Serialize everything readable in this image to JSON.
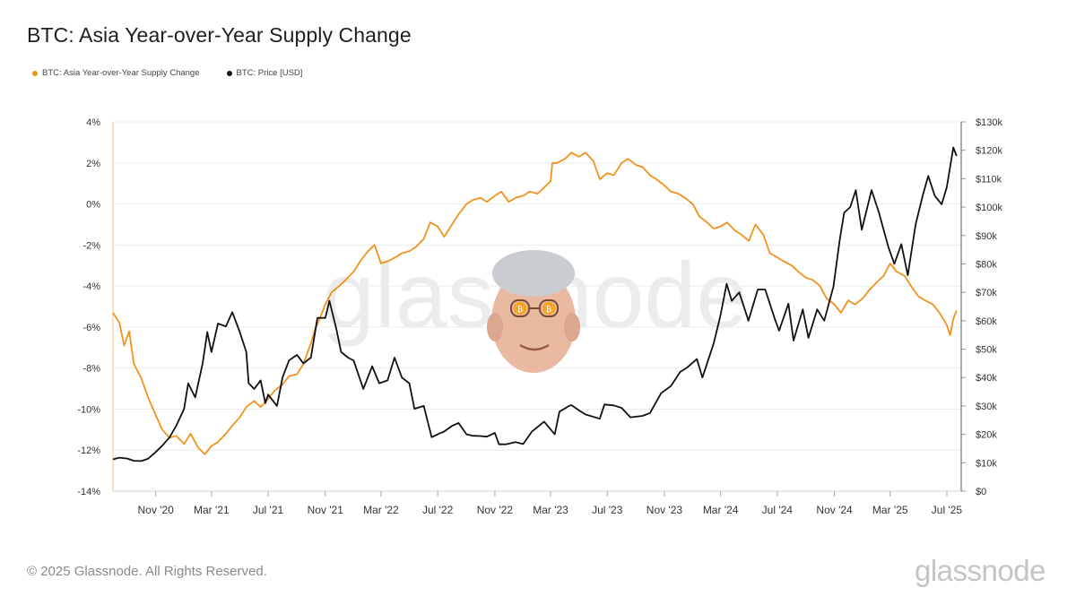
{
  "page": {
    "title": "BTC: Asia Year-over-Year Supply Change",
    "footer": "© 2025 Glassnode. All Rights Reserved.",
    "watermark": "glassnode"
  },
  "chart_data": {
    "type": "line",
    "title": "BTC: Asia Year-over-Year Supply Change",
    "legend_position": "top-left",
    "grid": true,
    "x_range": [
      "2020-08-01",
      "2025-08-01"
    ],
    "x_ticks": [
      {
        "date": "2020-11-01",
        "label": "Nov '20"
      },
      {
        "date": "2021-03-01",
        "label": "Mar '21"
      },
      {
        "date": "2021-07-01",
        "label": "Jul '21"
      },
      {
        "date": "2021-11-01",
        "label": "Nov '21"
      },
      {
        "date": "2022-03-01",
        "label": "Mar '22"
      },
      {
        "date": "2022-07-01",
        "label": "Jul '22"
      },
      {
        "date": "2022-11-01",
        "label": "Nov '22"
      },
      {
        "date": "2023-03-01",
        "label": "Mar '23"
      },
      {
        "date": "2023-07-01",
        "label": "Jul '23"
      },
      {
        "date": "2023-11-01",
        "label": "Nov '23"
      },
      {
        "date": "2024-03-01",
        "label": "Mar '24"
      },
      {
        "date": "2024-07-01",
        "label": "Jul '24"
      },
      {
        "date": "2024-11-01",
        "label": "Nov '24"
      },
      {
        "date": "2025-03-01",
        "label": "Mar '25"
      },
      {
        "date": "2025-07-01",
        "label": "Jul '25"
      }
    ],
    "y_left": {
      "ylim": [
        -14,
        4
      ],
      "ticks": [
        4,
        2,
        0,
        -2,
        -4,
        -6,
        -8,
        -10,
        -12,
        -14
      ],
      "tick_labels": [
        "4%",
        "2%",
        "0%",
        "-2%",
        "-4%",
        "-6%",
        "-8%",
        "-10%",
        "-12%",
        "-14%"
      ]
    },
    "y_right": {
      "ylim": [
        0,
        130000
      ],
      "ticks": [
        130000,
        120000,
        110000,
        100000,
        90000,
        80000,
        70000,
        60000,
        50000,
        40000,
        30000,
        20000,
        10000,
        0
      ],
      "tick_labels": [
        "$130k",
        "$120k",
        "$110k",
        "$100k",
        "$90k",
        "$80k",
        "$70k",
        "$60k",
        "$50k",
        "$40k",
        "$30k",
        "$20k",
        "$10k",
        "$0"
      ]
    },
    "series": [
      {
        "name": "BTC: Asia Year-over-Year Supply Change",
        "axis": "left",
        "color": "#f2921d",
        "points": [
          [
            "2020-08-01",
            -5.3
          ],
          [
            "2020-08-15",
            -5.8
          ],
          [
            "2020-08-25",
            -6.9
          ],
          [
            "2020-09-05",
            -6.2
          ],
          [
            "2020-09-15",
            -7.8
          ],
          [
            "2020-10-01",
            -8.5
          ],
          [
            "2020-10-15",
            -9.4
          ],
          [
            "2020-11-01",
            -10.3
          ],
          [
            "2020-11-15",
            -11.0
          ],
          [
            "2020-12-01",
            -11.4
          ],
          [
            "2020-12-15",
            -11.3
          ],
          [
            "2021-01-01",
            -11.7
          ],
          [
            "2021-01-15",
            -11.2
          ],
          [
            "2021-02-01",
            -11.9
          ],
          [
            "2021-02-15",
            -12.2
          ],
          [
            "2021-03-01",
            -11.8
          ],
          [
            "2021-03-15",
            -11.6
          ],
          [
            "2021-04-01",
            -11.2
          ],
          [
            "2021-04-15",
            -10.8
          ],
          [
            "2021-05-01",
            -10.4
          ],
          [
            "2021-05-15",
            -9.9
          ],
          [
            "2021-06-01",
            -9.6
          ],
          [
            "2021-06-15",
            -9.9
          ],
          [
            "2021-07-01",
            -9.5
          ],
          [
            "2021-07-15",
            -9.1
          ],
          [
            "2021-08-01",
            -8.8
          ],
          [
            "2021-08-15",
            -8.4
          ],
          [
            "2021-09-01",
            -8.3
          ],
          [
            "2021-09-15",
            -7.8
          ],
          [
            "2021-10-01",
            -6.8
          ],
          [
            "2021-10-10",
            -6.1
          ],
          [
            "2021-10-20",
            -5.6
          ],
          [
            "2021-11-01",
            -4.9
          ],
          [
            "2021-11-15",
            -4.3
          ],
          [
            "2021-12-01",
            -4.0
          ],
          [
            "2021-12-15",
            -3.7
          ],
          [
            "2022-01-01",
            -3.3
          ],
          [
            "2022-01-15",
            -2.8
          ],
          [
            "2022-02-01",
            -2.3
          ],
          [
            "2022-02-15",
            -2.0
          ],
          [
            "2022-03-01",
            -2.9
          ],
          [
            "2022-03-15",
            -2.8
          ],
          [
            "2022-04-01",
            -2.6
          ],
          [
            "2022-04-15",
            -2.4
          ],
          [
            "2022-05-01",
            -2.3
          ],
          [
            "2022-05-15",
            -2.1
          ],
          [
            "2022-06-01",
            -1.7
          ],
          [
            "2022-06-15",
            -0.9
          ],
          [
            "2022-07-01",
            -1.1
          ],
          [
            "2022-07-15",
            -1.6
          ],
          [
            "2022-08-01",
            -1.0
          ],
          [
            "2022-08-15",
            -0.5
          ],
          [
            "2022-09-01",
            0.0
          ],
          [
            "2022-09-15",
            0.2
          ],
          [
            "2022-10-01",
            0.3
          ],
          [
            "2022-10-15",
            0.1
          ],
          [
            "2022-11-01",
            0.4
          ],
          [
            "2022-11-15",
            0.6
          ],
          [
            "2022-12-01",
            0.1
          ],
          [
            "2022-12-15",
            0.3
          ],
          [
            "2023-01-01",
            0.4
          ],
          [
            "2023-01-15",
            0.6
          ],
          [
            "2023-02-01",
            0.5
          ],
          [
            "2023-02-15",
            0.8
          ],
          [
            "2023-03-01",
            1.1
          ],
          [
            "2023-03-05",
            2.0
          ],
          [
            "2023-03-15",
            2.0
          ],
          [
            "2023-04-01",
            2.2
          ],
          [
            "2023-04-15",
            2.5
          ],
          [
            "2023-05-01",
            2.3
          ],
          [
            "2023-05-15",
            2.5
          ],
          [
            "2023-06-01",
            2.1
          ],
          [
            "2023-06-15",
            1.2
          ],
          [
            "2023-07-01",
            1.5
          ],
          [
            "2023-07-15",
            1.4
          ],
          [
            "2023-08-01",
            2.0
          ],
          [
            "2023-08-15",
            2.2
          ],
          [
            "2023-09-01",
            1.9
          ],
          [
            "2023-09-15",
            1.8
          ],
          [
            "2023-10-01",
            1.4
          ],
          [
            "2023-10-15",
            1.2
          ],
          [
            "2023-11-01",
            0.9
          ],
          [
            "2023-11-15",
            0.6
          ],
          [
            "2023-12-01",
            0.5
          ],
          [
            "2023-12-15",
            0.3
          ],
          [
            "2024-01-01",
            0.0
          ],
          [
            "2024-01-15",
            -0.6
          ],
          [
            "2024-02-01",
            -0.9
          ],
          [
            "2024-02-15",
            -1.2
          ],
          [
            "2024-03-01",
            -1.1
          ],
          [
            "2024-03-15",
            -0.9
          ],
          [
            "2024-04-01",
            -1.3
          ],
          [
            "2024-04-15",
            -1.5
          ],
          [
            "2024-05-01",
            -1.8
          ],
          [
            "2024-05-15",
            -1.0
          ],
          [
            "2024-06-01",
            -1.5
          ],
          [
            "2024-06-15",
            -2.4
          ],
          [
            "2024-07-01",
            -2.6
          ],
          [
            "2024-07-15",
            -2.8
          ],
          [
            "2024-08-01",
            -3.0
          ],
          [
            "2024-08-15",
            -3.3
          ],
          [
            "2024-09-01",
            -3.6
          ],
          [
            "2024-09-15",
            -3.7
          ],
          [
            "2024-10-01",
            -4.0
          ],
          [
            "2024-10-15",
            -4.6
          ],
          [
            "2024-11-01",
            -4.9
          ],
          [
            "2024-11-15",
            -5.3
          ],
          [
            "2024-12-01",
            -4.7
          ],
          [
            "2024-12-15",
            -4.9
          ],
          [
            "2025-01-01",
            -4.6
          ],
          [
            "2025-01-15",
            -4.2
          ],
          [
            "2025-02-01",
            -3.8
          ],
          [
            "2025-02-15",
            -3.5
          ],
          [
            "2025-03-01",
            -2.9
          ],
          [
            "2025-03-15",
            -3.3
          ],
          [
            "2025-04-01",
            -3.5
          ],
          [
            "2025-04-15",
            -4.0
          ],
          [
            "2025-05-01",
            -4.5
          ],
          [
            "2025-05-15",
            -4.7
          ],
          [
            "2025-06-01",
            -4.9
          ],
          [
            "2025-06-15",
            -5.3
          ],
          [
            "2025-07-01",
            -5.9
          ],
          [
            "2025-07-08",
            -6.4
          ],
          [
            "2025-07-15",
            -5.6
          ],
          [
            "2025-07-22",
            -5.2
          ]
        ]
      },
      {
        "name": "BTC: Price [USD]",
        "axis": "right",
        "color": "#111111",
        "points": [
          [
            "2020-08-01",
            11200
          ],
          [
            "2020-08-15",
            11800
          ],
          [
            "2020-09-01",
            11500
          ],
          [
            "2020-09-15",
            10700
          ],
          [
            "2020-10-01",
            10600
          ],
          [
            "2020-10-15",
            11400
          ],
          [
            "2020-11-01",
            13800
          ],
          [
            "2020-11-15",
            16000
          ],
          [
            "2020-12-01",
            19000
          ],
          [
            "2020-12-15",
            23000
          ],
          [
            "2021-01-01",
            29000
          ],
          [
            "2021-01-10",
            38000
          ],
          [
            "2021-01-25",
            33000
          ],
          [
            "2021-02-10",
            45000
          ],
          [
            "2021-02-20",
            56000
          ],
          [
            "2021-03-01",
            49000
          ],
          [
            "2021-03-15",
            59000
          ],
          [
            "2021-04-01",
            58000
          ],
          [
            "2021-04-15",
            63000
          ],
          [
            "2021-05-01",
            56000
          ],
          [
            "2021-05-15",
            49000
          ],
          [
            "2021-05-20",
            38000
          ],
          [
            "2021-06-01",
            36000
          ],
          [
            "2021-06-15",
            39000
          ],
          [
            "2021-06-25",
            31000
          ],
          [
            "2021-07-01",
            34000
          ],
          [
            "2021-07-20",
            30000
          ],
          [
            "2021-08-01",
            40000
          ],
          [
            "2021-08-15",
            46000
          ],
          [
            "2021-09-01",
            48000
          ],
          [
            "2021-09-15",
            45000
          ],
          [
            "2021-10-01",
            47000
          ],
          [
            "2021-10-15",
            61000
          ],
          [
            "2021-11-01",
            61000
          ],
          [
            "2021-11-10",
            67000
          ],
          [
            "2021-11-25",
            57000
          ],
          [
            "2021-12-05",
            49000
          ],
          [
            "2021-12-20",
            47000
          ],
          [
            "2022-01-01",
            46000
          ],
          [
            "2022-01-22",
            36000
          ],
          [
            "2022-02-10",
            44000
          ],
          [
            "2022-02-25",
            38000
          ],
          [
            "2022-03-15",
            39000
          ],
          [
            "2022-03-30",
            47000
          ],
          [
            "2022-04-15",
            40000
          ],
          [
            "2022-05-01",
            38000
          ],
          [
            "2022-05-12",
            29000
          ],
          [
            "2022-06-01",
            30000
          ],
          [
            "2022-06-18",
            19000
          ],
          [
            "2022-07-01",
            20000
          ],
          [
            "2022-07-15",
            21000
          ],
          [
            "2022-08-01",
            23000
          ],
          [
            "2022-08-15",
            24000
          ],
          [
            "2022-09-01",
            20000
          ],
          [
            "2022-09-15",
            19500
          ],
          [
            "2022-10-01",
            19400
          ],
          [
            "2022-10-15",
            19200
          ],
          [
            "2022-11-01",
            20500
          ],
          [
            "2022-11-10",
            16500
          ],
          [
            "2022-11-25",
            16500
          ],
          [
            "2022-12-15",
            17300
          ],
          [
            "2023-01-01",
            16600
          ],
          [
            "2023-01-20",
            21000
          ],
          [
            "2023-02-15",
            24500
          ],
          [
            "2023-03-10",
            20000
          ],
          [
            "2023-03-20",
            28000
          ],
          [
            "2023-04-10",
            30000
          ],
          [
            "2023-04-15",
            30300
          ],
          [
            "2023-05-01",
            28500
          ],
          [
            "2023-05-15",
            27000
          ],
          [
            "2023-06-15",
            25500
          ],
          [
            "2023-06-25",
            30500
          ],
          [
            "2023-07-15",
            30200
          ],
          [
            "2023-08-01",
            29300
          ],
          [
            "2023-08-20",
            26000
          ],
          [
            "2023-09-15",
            26500
          ],
          [
            "2023-10-01",
            27500
          ],
          [
            "2023-10-25",
            34500
          ],
          [
            "2023-11-15",
            37000
          ],
          [
            "2023-12-05",
            42000
          ],
          [
            "2023-12-20",
            43500
          ],
          [
            "2024-01-10",
            46500
          ],
          [
            "2024-01-22",
            40000
          ],
          [
            "2024-02-15",
            52000
          ],
          [
            "2024-03-01",
            62000
          ],
          [
            "2024-03-14",
            73000
          ],
          [
            "2024-03-25",
            67000
          ],
          [
            "2024-04-10",
            70000
          ],
          [
            "2024-04-30",
            60000
          ],
          [
            "2024-05-20",
            71000
          ],
          [
            "2024-06-05",
            71000
          ],
          [
            "2024-06-25",
            61000
          ],
          [
            "2024-07-05",
            56500
          ],
          [
            "2024-07-25",
            66000
          ],
          [
            "2024-08-05",
            53000
          ],
          [
            "2024-08-25",
            64000
          ],
          [
            "2024-09-06",
            54000
          ],
          [
            "2024-09-25",
            64000
          ],
          [
            "2024-10-10",
            60000
          ],
          [
            "2024-10-30",
            72000
          ],
          [
            "2024-11-12",
            88000
          ],
          [
            "2024-11-22",
            98000
          ],
          [
            "2024-12-05",
            100000
          ],
          [
            "2024-12-17",
            106000
          ],
          [
            "2024-12-30",
            92000
          ],
          [
            "2025-01-20",
            106000
          ],
          [
            "2025-02-05",
            98000
          ],
          [
            "2025-02-25",
            86000
          ],
          [
            "2025-03-10",
            80000
          ],
          [
            "2025-03-25",
            87000
          ],
          [
            "2025-04-08",
            76000
          ],
          [
            "2025-04-25",
            94000
          ],
          [
            "2025-05-10",
            104000
          ],
          [
            "2025-05-22",
            111000
          ],
          [
            "2025-06-05",
            104000
          ],
          [
            "2025-06-20",
            101000
          ],
          [
            "2025-07-01",
            107000
          ],
          [
            "2025-07-11",
            117000
          ],
          [
            "2025-07-15",
            121000
          ],
          [
            "2025-07-22",
            118000
          ]
        ]
      }
    ]
  }
}
